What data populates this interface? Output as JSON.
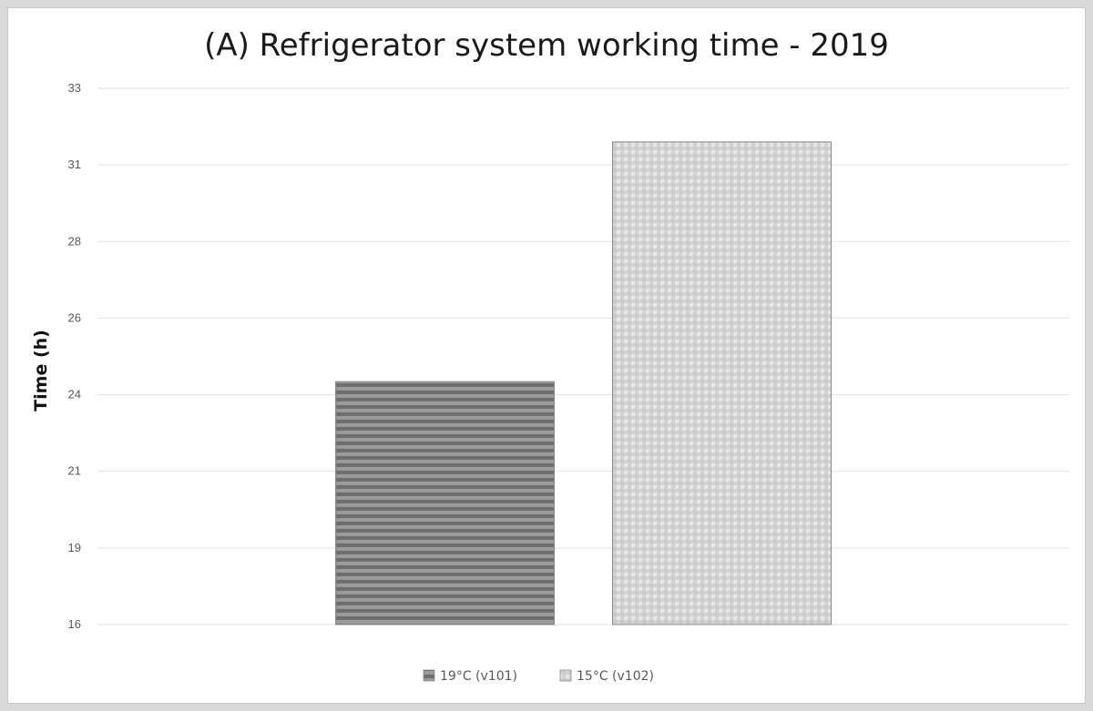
{
  "chart_data": {
    "type": "bar",
    "title": "(A) Refrigerator system working time - 2019",
    "xlabel": "",
    "ylabel": "Time (h)",
    "yticks": [
      "16",
      "19",
      "21",
      "24",
      "26",
      "28",
      "31",
      "33"
    ],
    "categories": [
      ""
    ],
    "series": [
      {
        "name": "19°C (v101)",
        "values": [
          23.7
        ],
        "color": "#808080",
        "pattern": "horizontal-stripes"
      },
      {
        "name": "15°C (v102)",
        "values": [
          31.3
        ],
        "color": "#cfcfcf",
        "pattern": "grid"
      }
    ],
    "grid": true,
    "legend_position": "bottom"
  }
}
